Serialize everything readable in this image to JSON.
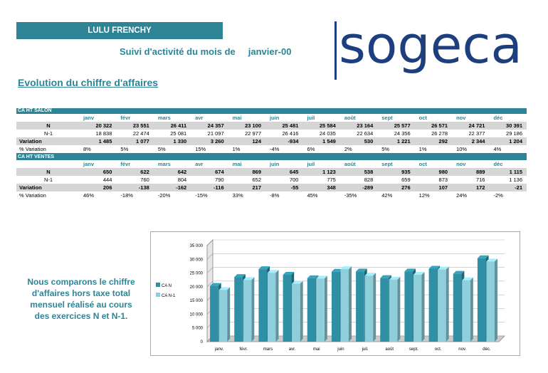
{
  "header": {
    "name": "LULU FRENCHY",
    "subtitle": "Suivi d'activité du mois de",
    "month": "janvier-00",
    "logo_text": "sogeca"
  },
  "section_title": "Evolution du chiffre d'affaires",
  "months": [
    "janv",
    "févr",
    "mars",
    "avr",
    "mai",
    "juin",
    "juil",
    "août",
    "sept",
    "oct",
    "nov",
    "déc"
  ],
  "tables": [
    {
      "title": "CA  HT SALON",
      "rows": [
        {
          "label": "N",
          "values": [
            "20 322",
            "23 551",
            "26 411",
            "24 357",
            "23 100",
            "25 481",
            "25 584",
            "23 164",
            "25 577",
            "26 571",
            "24 721",
            "30 391"
          ]
        },
        {
          "label": "N-1",
          "values": [
            "18 838",
            "22 474",
            "25 081",
            "21 097",
            "22 977",
            "26 416",
            "24 035",
            "22 634",
            "24 356",
            "26 278",
            "22 377",
            "29 186"
          ]
        },
        {
          "label": "Variation",
          "values": [
            "1 485",
            "1 077",
            "1 330",
            "3 260",
            "124",
            "-934",
            "1 549",
            "530",
            "1 221",
            "292",
            "2 344",
            "1 204"
          ]
        },
        {
          "label": "% Variation",
          "values": [
            "8%",
            "5%",
            "5%",
            "15%",
            "1%",
            "-4%",
            "6%",
            "2%",
            "5%",
            "1%",
            "10%",
            "4%"
          ]
        }
      ]
    },
    {
      "title": "CA  HT VENTES",
      "rows": [
        {
          "label": "N",
          "values": [
            "650",
            "622",
            "642",
            "674",
            "869",
            "645",
            "1 123",
            "538",
            "935",
            "980",
            "889",
            "1 115"
          ]
        },
        {
          "label": "N-1",
          "values": [
            "444",
            "760",
            "804",
            "790",
            "652",
            "700",
            "775",
            "828",
            "659",
            "873",
            "716",
            "1 136"
          ]
        },
        {
          "label": "Variation",
          "values": [
            "206",
            "-138",
            "-162",
            "-116",
            "217",
            "-55",
            "348",
            "-289",
            "276",
            "107",
            "172",
            "-21"
          ]
        },
        {
          "label": "% Variation",
          "values": [
            "46%",
            "-18%",
            "-20%",
            "-15%",
            "33%",
            "-8%",
            "45%",
            "-35%",
            "42%",
            "12%",
            "24%",
            "-2%"
          ]
        }
      ]
    }
  ],
  "caption_lines": [
    "Nous comparons le chiffre",
    "d'affaires hors taxe total",
    "mensuel réalisé au cours",
    "des exercices N et N-1."
  ],
  "chart_data": {
    "type": "bar",
    "categories": [
      "janv.",
      "févr.",
      "mars",
      "avr.",
      "mai",
      "juin",
      "juil.",
      "août",
      "sept.",
      "oct.",
      "nov.",
      "déc."
    ],
    "series": [
      {
        "name": "CA N",
        "values": [
          20322,
          23551,
          26411,
          24357,
          23100,
          25481,
          25584,
          23164,
          25577,
          26571,
          24721,
          30391
        ],
        "color": "#2e8fa5"
      },
      {
        "name": "CA N-1",
        "values": [
          18838,
          22474,
          25081,
          21097,
          22977,
          26416,
          24035,
          22634,
          24356,
          26278,
          22377,
          29186
        ],
        "color": "#8fcfdc"
      }
    ],
    "yticks": [
      "0",
      "5 000",
      "10 000",
      "15 000",
      "20 000",
      "25 000",
      "30 000",
      "35 000"
    ],
    "ylim": [
      0,
      35000
    ],
    "grid": true,
    "style": "3d",
    "legend_position": "right"
  }
}
